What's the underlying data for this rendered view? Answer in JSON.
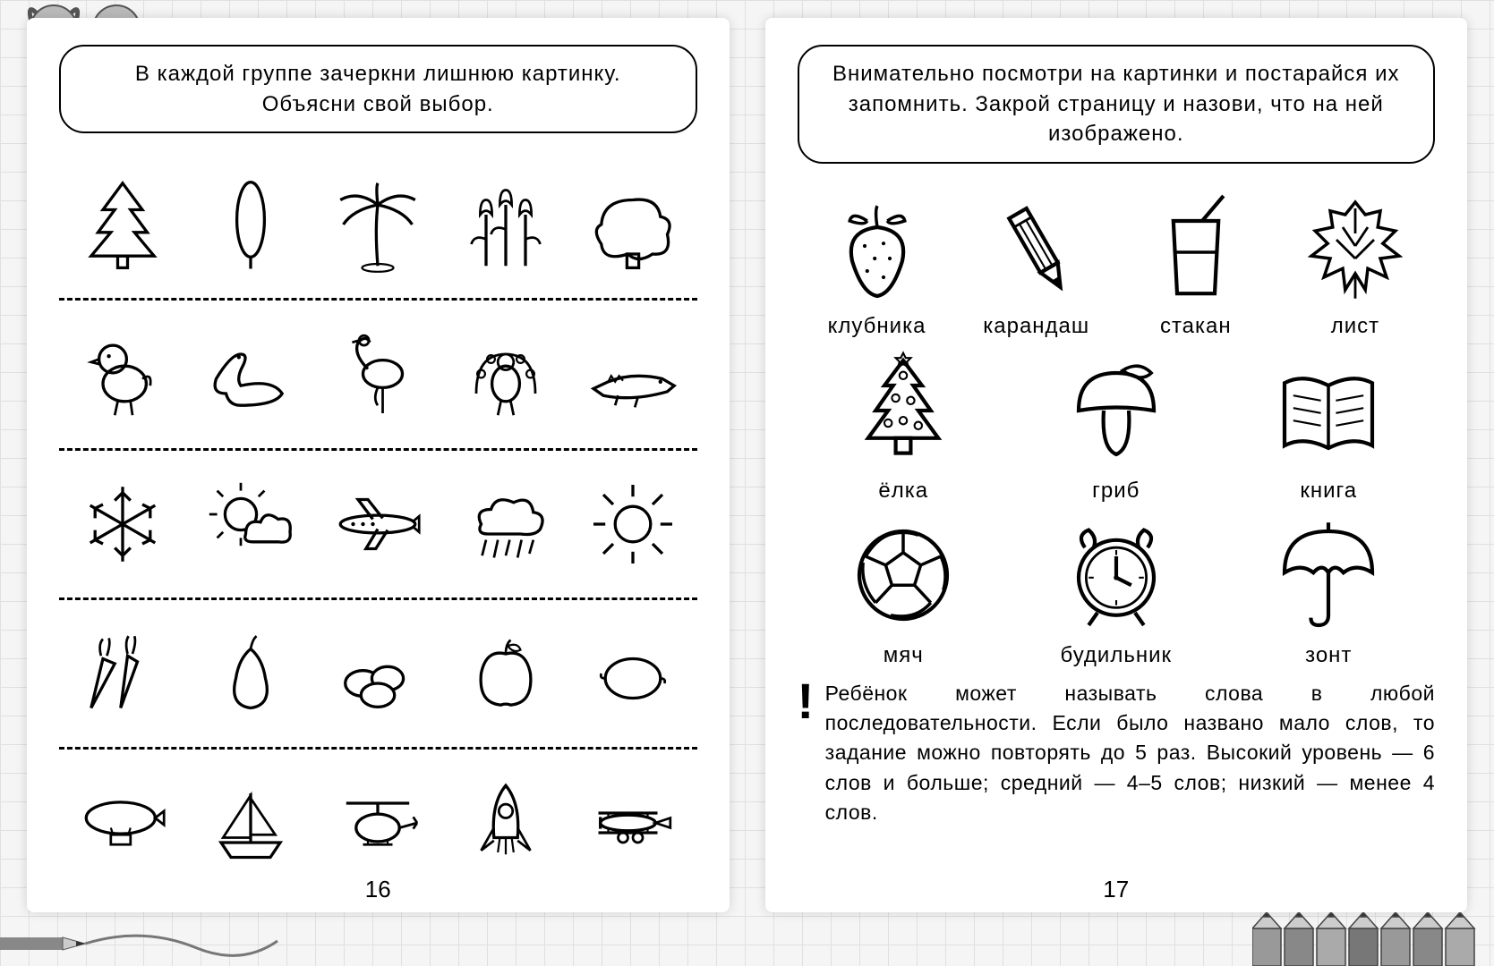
{
  "colors": {
    "bg": "#f5f5f5",
    "grid": "#e0e0e0",
    "stroke": "#000000",
    "paper": "#ffffff"
  },
  "left_page": {
    "instruction": "В каждой группе зачеркни лишнюю картинку. Объясни свой выбор.",
    "page_number": "16",
    "groups": [
      {
        "icons": [
          "fir-tree",
          "cypress",
          "palm",
          "tulips",
          "oak"
        ]
      },
      {
        "icons": [
          "chick",
          "swan",
          "flamingo",
          "peacock",
          "crocodile"
        ]
      },
      {
        "icons": [
          "snowflake",
          "sun-cloud",
          "airplane",
          "rain-cloud",
          "sun"
        ]
      },
      {
        "icons": [
          "carrots",
          "pear",
          "potatoes",
          "apple",
          "lemon"
        ]
      },
      {
        "icons": [
          "airship",
          "sailboat",
          "helicopter",
          "rocket",
          "biplane"
        ]
      }
    ]
  },
  "right_page": {
    "instruction": "Внимательно посмотри на картинки и постарайся их запомнить. Закрой страницу и назови, что на ней изображено.",
    "page_number": "17",
    "memory_rows": [
      [
        {
          "icon": "strawberry",
          "label": "клубника"
        },
        {
          "icon": "pencil",
          "label": "карандаш"
        },
        {
          "icon": "glass",
          "label": "стакан"
        },
        {
          "icon": "leaf",
          "label": "лист"
        }
      ],
      [
        {
          "icon": "xmas-tree",
          "label": "ёлка"
        },
        {
          "icon": "mushroom",
          "label": "гриб"
        },
        {
          "icon": "book",
          "label": "книга"
        }
      ],
      [
        {
          "icon": "ball",
          "label": "мяч"
        },
        {
          "icon": "alarm-clock",
          "label": "будильник"
        },
        {
          "icon": "umbrella",
          "label": "зонт"
        }
      ]
    ],
    "note_mark": "!",
    "note": "Ребёнок может называть слова в любой последовательности. Если было названо мало слов, то задание можно повторять до 5 раз. Высокий уровень — 6 слов и больше; средний — 4–5 слов; низкий — менее 4 слов."
  }
}
